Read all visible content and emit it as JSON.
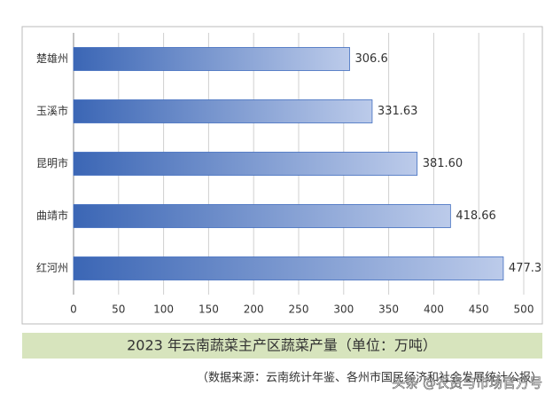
{
  "chart_data": {
    "type": "bar",
    "orientation": "horizontal",
    "title": "2023 年云南蔬菜主产区蔬菜产量（单位：万吨）",
    "source": "（数据来源：云南统计年鉴、各州市国民经济和社会发展统计公报）",
    "watermark": "头条 @农资与市场官方号",
    "categories": [
      "楚雄州",
      "玉溪市",
      "昆明市",
      "曲靖市",
      "红河州"
    ],
    "values": [
      306.6,
      331.63,
      381.6,
      418.66,
      477.3
    ],
    "value_labels": [
      "306.6",
      "331.63",
      "381.60",
      "418.66",
      "477.3"
    ],
    "color": "#3f6cbf",
    "xlim": [
      0,
      500
    ],
    "xticks": [
      0,
      50,
      100,
      150,
      200,
      250,
      300,
      350,
      400,
      450,
      500
    ],
    "grid": true
  }
}
